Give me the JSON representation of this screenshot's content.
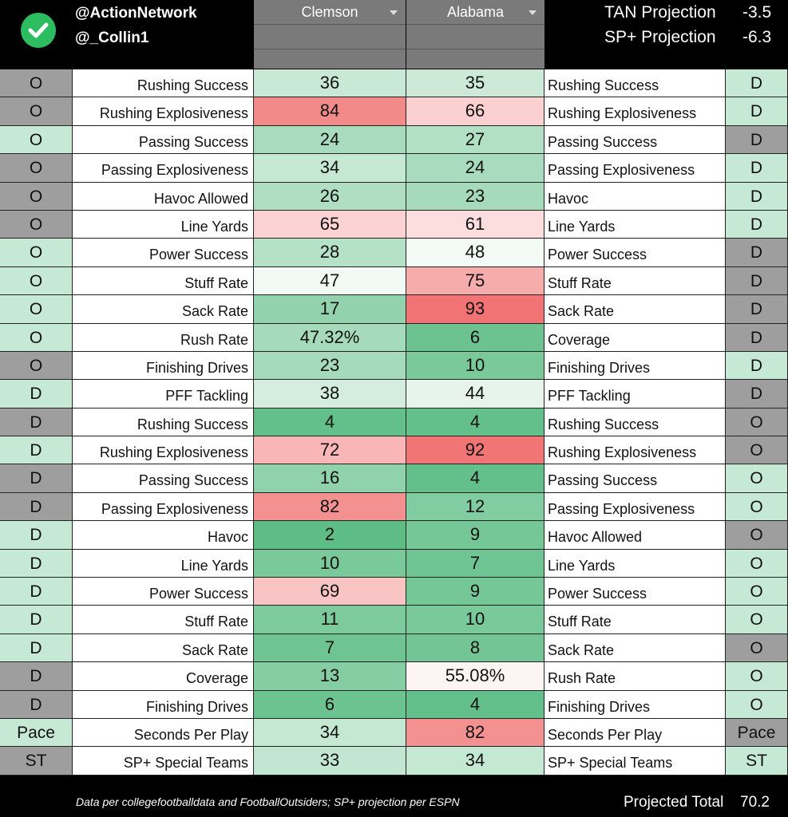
{
  "header": {
    "handle1": "@ActionNetwork",
    "handle2": "@_Collin1",
    "team_left": "Clemson",
    "team_right": "Alabama",
    "proj1_label": "TAN Projection",
    "proj1_value": "-3.5",
    "proj2_label": "SP+ Projection",
    "proj2_value": "-6.3"
  },
  "colors": {
    "side_gray": "#9e9e9e",
    "side_green": "#c6e9d6",
    "check_green": "#2bbd5f"
  },
  "rows": [
    {
      "ls": "O",
      "lsc": "g",
      "ll": "Rushing Success",
      "lv": "36",
      "lc": "#c9e9d6",
      "rv": "35",
      "rc": "#cdead9",
      "rl": "Rushing Success",
      "rs": "D",
      "rsc": "l"
    },
    {
      "ls": "O",
      "lsc": "g",
      "ll": "Rushing Explosiveness",
      "lv": "84",
      "lc": "#f38a8a",
      "rv": "66",
      "rc": "#fbd0d0",
      "rl": "Rushing Explosiveness",
      "rs": "D",
      "rsc": "l"
    },
    {
      "ls": "O",
      "lsc": "l",
      "ll": "Passing Success",
      "lv": "24",
      "lc": "#a9dcbe",
      "rv": "27",
      "rc": "#b2e0c5",
      "rl": "Passing Success",
      "rs": "D",
      "rsc": "g"
    },
    {
      "ls": "O",
      "lsc": "g",
      "ll": "Passing Explosiveness",
      "lv": "34",
      "lc": "#c5e8d3",
      "rv": "24",
      "rc": "#a9dcbe",
      "rl": "Passing Explosiveness",
      "rs": "D",
      "rsc": "l"
    },
    {
      "ls": "O",
      "lsc": "g",
      "ll": "Havoc Allowed",
      "lv": "26",
      "lc": "#afdec2",
      "rv": "23",
      "rc": "#a5dabb",
      "rl": "Havoc",
      "rs": "D",
      "rsc": "l"
    },
    {
      "ls": "O",
      "lsc": "g",
      "ll": "Line Yards",
      "lv": "65",
      "lc": "#fbd2d2",
      "rv": "61",
      "rc": "#fcdede",
      "rl": "Line Yards",
      "rs": "D",
      "rsc": "l"
    },
    {
      "ls": "O",
      "lsc": "l",
      "ll": "Power Success",
      "lv": "28",
      "lc": "#b5e1c7",
      "rv": "48",
      "rc": "#f4faf6",
      "rl": "Power Success",
      "rs": "D",
      "rsc": "g"
    },
    {
      "ls": "O",
      "lsc": "l",
      "ll": "Stuff Rate",
      "lv": "47",
      "lc": "#f3faf5",
      "rv": "75",
      "rc": "#f7acac",
      "rl": "Stuff Rate",
      "rs": "D",
      "rsc": "g"
    },
    {
      "ls": "O",
      "lsc": "l",
      "ll": "Sack Rate",
      "lv": "17",
      "lc": "#92d3ad",
      "rv": "93",
      "rc": "#f17373",
      "rl": "Sack Rate",
      "rs": "D",
      "rsc": "g"
    },
    {
      "ls": "O",
      "lsc": "l",
      "ll": "Rush Rate",
      "lv": "47.32%",
      "lc": "#a5dabb",
      "rv": "6",
      "rc": "#6cc390",
      "rl": "Coverage",
      "rs": "D",
      "rsc": "g"
    },
    {
      "ls": "O",
      "lsc": "g",
      "ll": "Finishing Drives",
      "lv": "23",
      "lc": "#a5dabb",
      "rv": "10",
      "rc": "#7ac99b",
      "rl": "Finishing Drives",
      "rs": "D",
      "rsc": "l"
    },
    {
      "ls": "D",
      "lsc": "l",
      "ll": "PFF Tackling",
      "lv": "38",
      "lc": "#d5eddf",
      "rv": "44",
      "rc": "#e6f4ec",
      "rl": "PFF Tackling",
      "rs": "D",
      "rsc": "g"
    },
    {
      "ls": "D",
      "lsc": "g",
      "ll": "Rushing Success",
      "lv": "4",
      "lc": "#64c08a",
      "rv": "4",
      "rc": "#64c08a",
      "rl": "Rushing Success",
      "rs": "O",
      "rsc": "g"
    },
    {
      "ls": "D",
      "lsc": "l",
      "ll": "Rushing Explosiveness",
      "lv": "72",
      "lc": "#f8b6b6",
      "rv": "92",
      "rc": "#f17575",
      "rl": "Rushing Explosiveness",
      "rs": "O",
      "rsc": "g"
    },
    {
      "ls": "D",
      "lsc": "g",
      "ll": "Passing Success",
      "lv": "16",
      "lc": "#8fd2ab",
      "rv": "4",
      "rc": "#64c08a",
      "rl": "Passing Success",
      "rs": "O",
      "rsc": "l"
    },
    {
      "ls": "D",
      "lsc": "g",
      "ll": "Passing Explosiveness",
      "lv": "82",
      "lc": "#f39090",
      "rv": "12",
      "rc": "#82cca1",
      "rl": "Passing Explosiveness",
      "rs": "O",
      "rsc": "l"
    },
    {
      "ls": "D",
      "lsc": "l",
      "ll": "Havoc",
      "lv": "2",
      "lc": "#5dbd85",
      "rv": "9",
      "rc": "#76c798",
      "rl": "Havoc Allowed",
      "rs": "O",
      "rsc": "g"
    },
    {
      "ls": "D",
      "lsc": "l",
      "ll": "Line Yards",
      "lv": "10",
      "lc": "#7ac99b",
      "rv": "7",
      "rc": "#6fc493",
      "rl": "Line Yards",
      "rs": "O",
      "rsc": "l"
    },
    {
      "ls": "D",
      "lsc": "l",
      "ll": "Power Success",
      "lv": "69",
      "lc": "#f9c4c4",
      "rv": "9",
      "rc": "#76c798",
      "rl": "Power Success",
      "rs": "O",
      "rsc": "l"
    },
    {
      "ls": "D",
      "lsc": "l",
      "ll": "Stuff Rate",
      "lv": "11",
      "lc": "#7dca9d",
      "rv": "10",
      "rc": "#7ac99b",
      "rl": "Stuff Rate",
      "rs": "O",
      "rsc": "l"
    },
    {
      "ls": "D",
      "lsc": "l",
      "ll": "Sack Rate",
      "lv": "7",
      "lc": "#6fc493",
      "rv": "8",
      "rc": "#73c596",
      "rl": "Sack Rate",
      "rs": "O",
      "rsc": "g"
    },
    {
      "ls": "D",
      "lsc": "g",
      "ll": "Coverage",
      "lv": "13",
      "lc": "#85cda3",
      "rv": "55.08%",
      "rc": "#fdf4f4",
      "rl": "Rush Rate",
      "rs": "O",
      "rsc": "l"
    },
    {
      "ls": "D",
      "lsc": "g",
      "ll": "Finishing Drives",
      "lv": "6",
      "lc": "#6cc390",
      "rv": "4",
      "rc": "#64c08a",
      "rl": "Finishing Drives",
      "rs": "O",
      "rsc": "l"
    },
    {
      "ls": "Pace",
      "lsc": "l",
      "ll": "Seconds Per Play",
      "lv": "34",
      "lc": "#c5e8d3",
      "rv": "82",
      "rc": "#f39090",
      "rl": "Seconds Per Play",
      "rs": "Pace",
      "rsc": "g"
    },
    {
      "ls": "ST",
      "lsc": "g",
      "ll": "SP+ Special Teams",
      "lv": "33",
      "lc": "#c2e6d1",
      "rv": "34",
      "rc": "#c5e8d3",
      "rl": "SP+ Special Teams",
      "rs": "ST",
      "rsc": "l"
    }
  ],
  "footer": {
    "source": "Data per collegefootballdata and FootballOutsiders; SP+ projection per ESPN",
    "total_label": "Projected Total",
    "total_value": "70.2"
  }
}
